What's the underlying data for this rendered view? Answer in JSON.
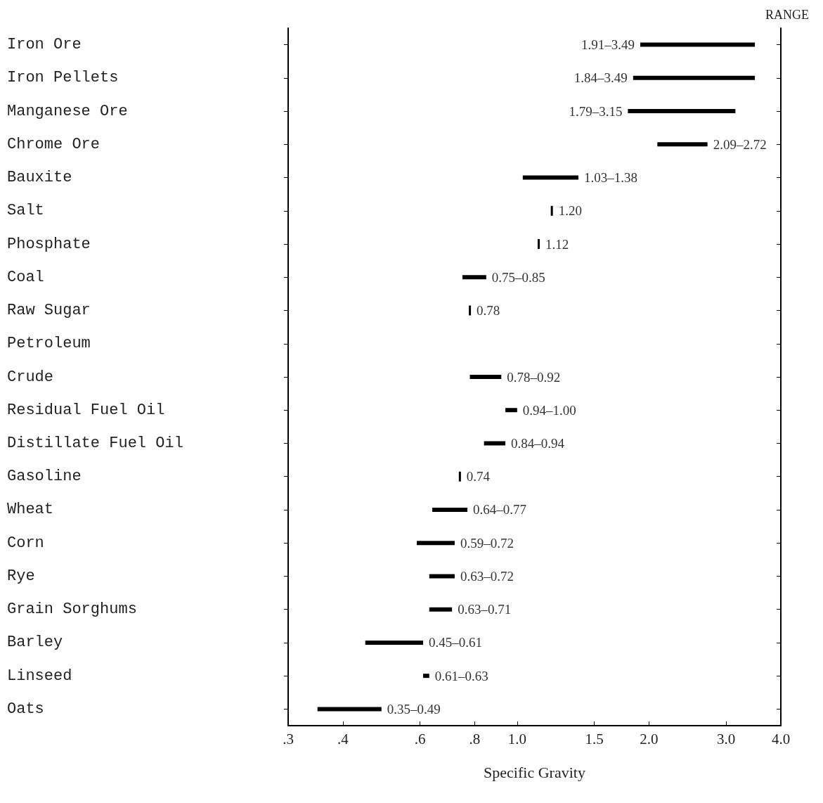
{
  "chart_data": {
    "type": "bar",
    "orientation": "horizontal",
    "xlabel": "Specific Gravity",
    "annotations": [
      "RANGE"
    ],
    "categories": [
      "Iron Ore",
      "Iron Pellets",
      "Manganese Ore",
      "Chrome Ore",
      "Bauxite",
      "Salt",
      "Phosphate",
      "Coal",
      "Raw Sugar",
      "Petroleum",
      "Crude",
      "Residual Fuel Oil",
      "Distillate Fuel Oil",
      "Gasoline",
      "Wheat",
      "Corn",
      "Rye",
      "Grain Sorghums",
      "Barley",
      "Linseed",
      "Oats"
    ],
    "base": [
      1.91,
      1.84,
      1.79,
      2.09,
      1.03,
      1.2,
      1.12,
      0.75,
      0.78,
      null,
      0.78,
      0.94,
      0.84,
      0.74,
      0.64,
      0.59,
      0.63,
      0.63,
      0.45,
      0.61,
      0.35
    ],
    "values": [
      1.58,
      1.65,
      1.36,
      0.63,
      0.35,
      0,
      0,
      0.1,
      0,
      null,
      0.14,
      0.06,
      0.1,
      0,
      0.13,
      0.13,
      0.09,
      0.08,
      0.16,
      0.02,
      0.14
    ],
    "value_labels": [
      "1.91–3.49",
      "1.84–3.49",
      "1.79–3.15",
      "2.09–2.72",
      "1.03–1.38",
      "1.20",
      "1.12",
      "0.75–0.85",
      "0.78",
      null,
      "0.78–0.92",
      "0.94–1.00",
      "0.84–0.94",
      "0.74",
      "0.64–0.77",
      "0.59–0.72",
      "0.63–0.72",
      "0.63–0.71",
      "0.45–0.61",
      "0.61–0.63",
      "0.35–0.49"
    ],
    "color": "#000000",
    "log": "x",
    "xlim": [
      0.3,
      4.0
    ],
    "xticks": [
      {
        "value": 0.3,
        "label": ".3"
      },
      {
        "value": 0.4,
        "label": ".4"
      },
      {
        "value": 0.6,
        "label": ".6"
      },
      {
        "value": 0.8,
        "label": ".8"
      },
      {
        "value": 1.0,
        "label": "1.0"
      },
      {
        "value": 1.5,
        "label": "1.5"
      },
      {
        "value": 2.0,
        "label": "2.0"
      },
      {
        "value": 3.0,
        "label": "3.0"
      },
      {
        "value": 4.0,
        "label": "4.0"
      }
    ],
    "grid": false
  }
}
